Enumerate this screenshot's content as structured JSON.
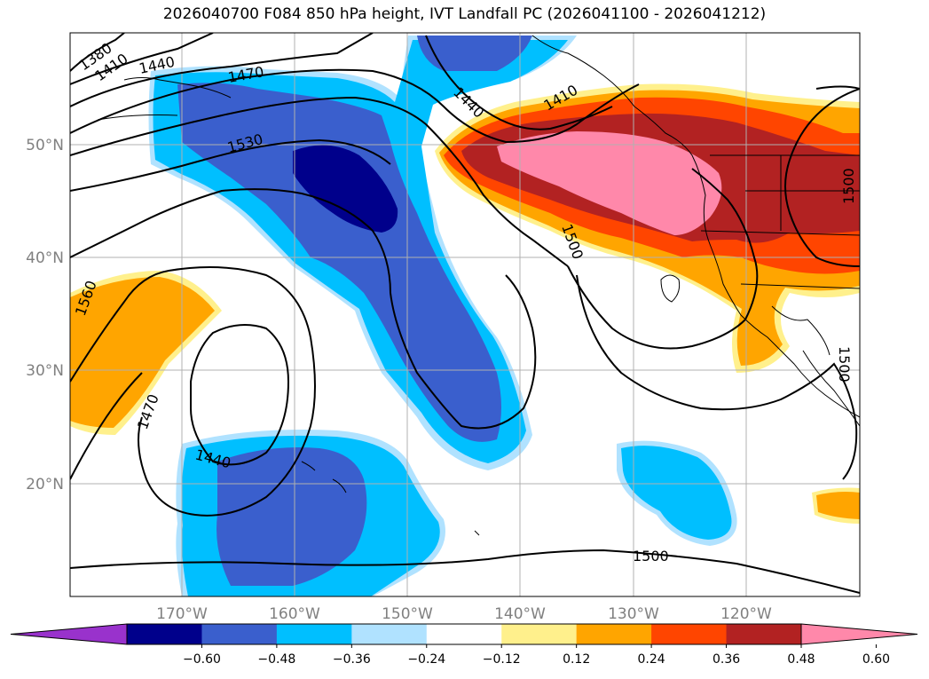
{
  "title": "2026040700 F084 850 hPa height, IVT Landfall PC (2026041100 - 2026041212)",
  "map": {
    "lat_labels": [
      "50°N",
      "40°N",
      "30°N",
      "20°N"
    ],
    "lon_labels": [
      "170°W",
      "160°W",
      "150°W",
      "140°W",
      "130°W",
      "120°W"
    ],
    "lat_range": [
      10,
      60
    ],
    "lon_range": [
      -180,
      -110
    ],
    "gridlines": true
  },
  "contour_labels": [
    "1380",
    "1410",
    "1440",
    "1470",
    "1530",
    "1560",
    "1470",
    "1440",
    "1440",
    "1410",
    "1500",
    "1500",
    "1500",
    "1500"
  ],
  "colorbar": {
    "ticks": [
      "−0.60",
      "−0.48",
      "−0.36",
      "−0.24",
      "−0.12",
      "0.12",
      "0.24",
      "0.36",
      "0.48",
      "0.60"
    ],
    "colors": [
      "#9932cc",
      "#00008b",
      "#3a5fcd",
      "#00bfff",
      "#b0e2ff",
      "#ffffff",
      "#fff08c",
      "#ffa500",
      "#ff4500",
      "#b22222",
      "#ff88aa"
    ]
  }
}
